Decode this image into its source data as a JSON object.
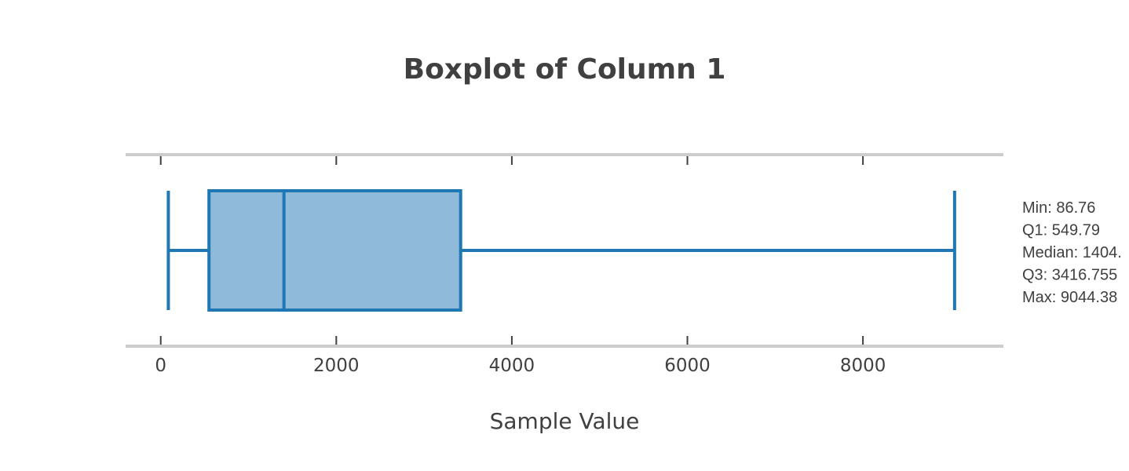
{
  "chart_data": {
    "type": "boxplot",
    "title": "Boxplot of Column 1",
    "xlabel": "Sample Value",
    "ylabel": "",
    "xlim": [
      -400,
      9600
    ],
    "xticks": [
      0,
      2000,
      4000,
      6000,
      8000
    ],
    "xtick_labels": [
      "0",
      "2000",
      "4000",
      "6000",
      "8000"
    ],
    "orientation": "horizontal",
    "grid": false,
    "colors": {
      "box_fill": "#8fbad9",
      "box_edge": "#1f77b4",
      "spine": "#cccccc",
      "tick": "#404040",
      "text": "#404040"
    },
    "box": {
      "min": 86.76,
      "q1": 549.79,
      "median": 1404.0,
      "q3": 3416.755,
      "max": 9044.38
    },
    "stats_lines": [
      "Min: 86.76",
      "Q1: 549.79",
      "Median: 1404.",
      "Q3: 3416.755",
      "Max: 9044.38"
    ]
  }
}
